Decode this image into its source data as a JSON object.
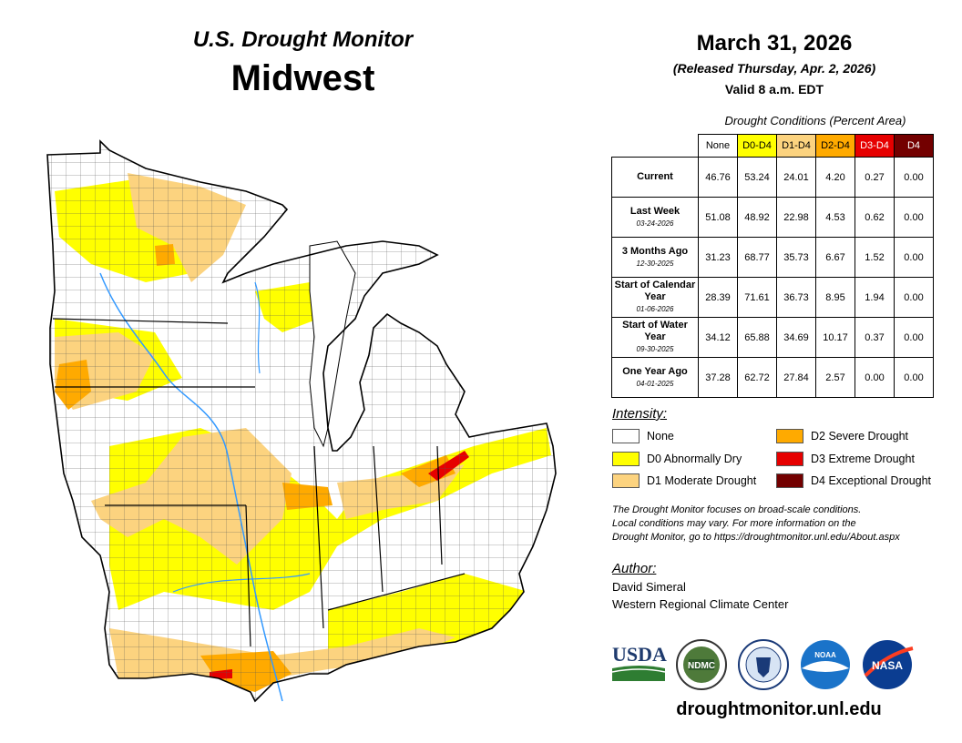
{
  "header": {
    "title": "U.S. Drought Monitor",
    "region": "Midwest",
    "date": "March 31, 2026",
    "released": "(Released Thursday, Apr. 2, 2026)",
    "valid": "Valid 8 a.m. EDT"
  },
  "table": {
    "title": "Drought Conditions (Percent Area)",
    "columns": [
      {
        "label": "None",
        "color": "#ffffff",
        "text_color": "#000000"
      },
      {
        "label": "D0-D4",
        "color": "#ffff00",
        "text_color": "#000000"
      },
      {
        "label": "D1-D4",
        "color": "#fcd37f",
        "text_color": "#000000"
      },
      {
        "label": "D2-D4",
        "color": "#ffaa00",
        "text_color": "#000000"
      },
      {
        "label": "D3-D4",
        "color": "#e60000",
        "text_color": "#ffffff"
      },
      {
        "label": "D4",
        "color": "#730000",
        "text_color": "#ffffff"
      }
    ],
    "rows": [
      {
        "label": "Current",
        "date": "",
        "values": [
          "46.76",
          "53.24",
          "24.01",
          "4.20",
          "0.27",
          "0.00"
        ]
      },
      {
        "label": "Last Week",
        "date": "03-24-2026",
        "values": [
          "51.08",
          "48.92",
          "22.98",
          "4.53",
          "0.62",
          "0.00"
        ]
      },
      {
        "label": "3 Months Ago",
        "date": "12-30-2025",
        "values": [
          "31.23",
          "68.77",
          "35.73",
          "6.67",
          "1.52",
          "0.00"
        ]
      },
      {
        "label": "Start of Calendar Year",
        "date": "01-06-2026",
        "values": [
          "28.39",
          "71.61",
          "36.73",
          "8.95",
          "1.94",
          "0.00"
        ]
      },
      {
        "label": "Start of Water Year",
        "date": "09-30-2025",
        "values": [
          "34.12",
          "65.88",
          "34.69",
          "10.17",
          "0.37",
          "0.00"
        ]
      },
      {
        "label": "One Year Ago",
        "date": "04-01-2025",
        "values": [
          "37.28",
          "62.72",
          "27.84",
          "2.57",
          "0.00",
          "0.00"
        ]
      }
    ]
  },
  "legend": {
    "title": "Intensity:",
    "items": [
      {
        "label": "None",
        "color": "#ffffff"
      },
      {
        "label": "D0 Abnormally Dry",
        "color": "#ffff00"
      },
      {
        "label": "D1 Moderate Drought",
        "color": "#fcd37f"
      },
      {
        "label": "D2 Severe Drought",
        "color": "#ffaa00"
      },
      {
        "label": "D3 Extreme Drought",
        "color": "#e60000"
      },
      {
        "label": "D4 Exceptional Drought",
        "color": "#730000"
      }
    ]
  },
  "note": {
    "line1": "The Drought Monitor focuses on broad-scale conditions.",
    "line2": "Local conditions may vary. For more information on the",
    "line3": "Drought Monitor, go to https://droughtmonitor.unl.edu/About.aspx"
  },
  "author": {
    "title": "Author:",
    "name": "David Simeral",
    "org": "Western Regional Climate Center"
  },
  "logos": {
    "usda": "USDA",
    "ndmc": "NDMC",
    "noaa": "NOAA",
    "nasa": "NASA"
  },
  "site": "droughtmonitor.unl.edu",
  "colors": {
    "none": "#ffffff",
    "d0": "#ffff00",
    "d1": "#fcd37f",
    "d2": "#ffaa00",
    "d3": "#e60000",
    "d4": "#730000",
    "water": "#3399ff"
  }
}
